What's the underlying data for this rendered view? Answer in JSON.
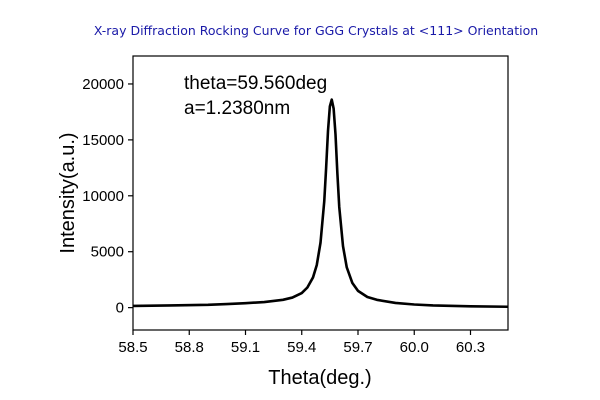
{
  "chart_data": {
    "type": "line",
    "title": "X-ray Diffraction Rocking Curve for GGG Crystals at <111> Orientation",
    "xlabel": "Theta(deg.)",
    "ylabel": "Intensity(a.u.)",
    "xlim": [
      58.5,
      60.5
    ],
    "ylim": [
      -2000,
      22500
    ],
    "xticks": [
      58.5,
      58.8,
      59.1,
      59.4,
      59.7,
      60.0,
      60.3
    ],
    "xtick_labels": [
      "58.5",
      "58.8",
      "59.1",
      "59.4",
      "59.7",
      "60.0",
      "60.3"
    ],
    "yticks": [
      0,
      5000,
      10000,
      15000,
      20000
    ],
    "ytick_labels": [
      "0",
      "5000",
      "10000",
      "15000",
      "20000"
    ],
    "grid": false,
    "legend": "none",
    "line_color": "#000000",
    "annotations": [
      "theta=59.560deg",
      "a=1.2380nm"
    ],
    "series": [
      {
        "x": [
          58.5,
          58.7,
          58.9,
          59.0,
          59.1,
          59.2,
          59.3,
          59.35,
          59.4,
          59.43,
          59.46,
          59.48,
          59.5,
          59.52,
          59.53,
          59.54,
          59.55,
          59.56,
          59.57,
          59.58,
          59.59,
          59.6,
          59.62,
          59.64,
          59.67,
          59.7,
          59.75,
          59.8,
          59.9,
          60.0,
          60.1,
          60.3,
          60.5
        ],
        "y": [
          150,
          200,
          250,
          320,
          400,
          500,
          700,
          900,
          1300,
          1800,
          2700,
          3800,
          5800,
          9500,
          12500,
          15800,
          18000,
          18600,
          17800,
          15500,
          12000,
          9000,
          5500,
          3600,
          2200,
          1500,
          950,
          700,
          420,
          280,
          200,
          120,
          80
        ]
      }
    ]
  }
}
